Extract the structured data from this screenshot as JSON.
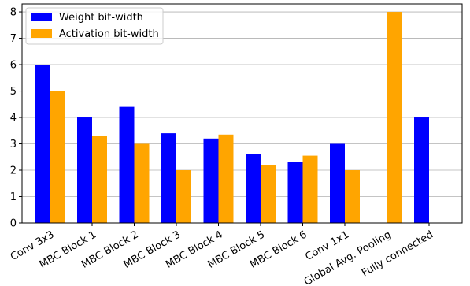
{
  "chart_data": {
    "type": "bar",
    "categories": [
      "Conv 3x3",
      "MBC Block 1",
      "MBC Block 2",
      "MBC Block 3",
      "MBC Block 4",
      "MBC Block 5",
      "MBC Block 6",
      "Conv 1x1",
      "Global Avg. Pooling",
      "Fully connected"
    ],
    "series": [
      {
        "name": "Weight bit-width",
        "color": "#0000ff",
        "values": [
          6,
          4,
          4.4,
          3.4,
          3.2,
          2.6,
          2.3,
          3,
          null,
          4
        ]
      },
      {
        "name": "Activation bit-width",
        "color": "#ffa500",
        "values": [
          5,
          3.3,
          3,
          2,
          3.35,
          2.2,
          2.55,
          2,
          8,
          null
        ]
      }
    ],
    "title": "",
    "xlabel": "",
    "ylabel": "",
    "ylim": [
      0,
      8.3
    ],
    "yticks": [
      0,
      1,
      2,
      3,
      4,
      5,
      6,
      7,
      8
    ],
    "grid": "horizontal",
    "legend": "top-left"
  }
}
